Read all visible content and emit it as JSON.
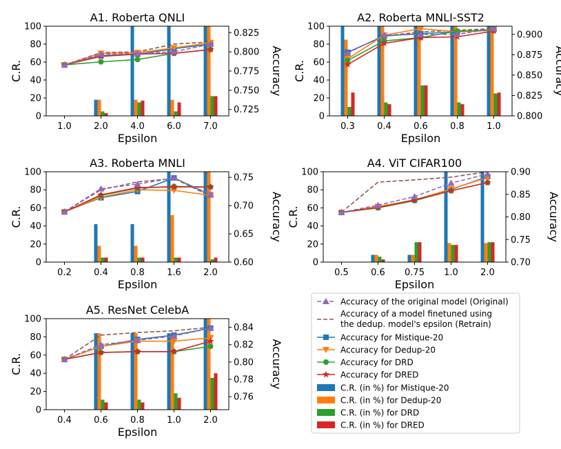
{
  "colors": {
    "mistique": "#1f77b4",
    "dedup": "#ff7f0e",
    "drd": "#2ca02c",
    "dred": "#d62728",
    "original": "#9467bd",
    "retrain": "#8c564b"
  },
  "legend": {
    "placement": "bottom-right",
    "entries": [
      {
        "key": "original",
        "kind": "line-dashed-triangle",
        "label": "Accuracy of the original model (Original)"
      },
      {
        "key": "retrain",
        "kind": "line-dashed",
        "label": "Accuracy of a model finetuned using",
        "label2": "the dedup. model's epsilon (Retrain)"
      },
      {
        "key": "mistique",
        "kind": "line-square",
        "label": "Accuracy for Mistique-20"
      },
      {
        "key": "dedup",
        "kind": "line-tri-down",
        "label": "Accuracy for Dedup-20"
      },
      {
        "key": "drd",
        "kind": "line-circle",
        "label": "Accuracy for DRD"
      },
      {
        "key": "dred",
        "kind": "line-star",
        "label": "Accuracy for DRED"
      },
      {
        "key": "mistique",
        "kind": "bar",
        "label": "C.R. (in %) for Mistique-20"
      },
      {
        "key": "dedup",
        "kind": "bar",
        "label": "C.R. (in %) for Dedup-20"
      },
      {
        "key": "drd",
        "kind": "bar",
        "label": "C.R. (in %) for DRD"
      },
      {
        "key": "dred",
        "kind": "bar",
        "label": "C.R. (in %) for DRED"
      }
    ]
  },
  "chart_data": [
    {
      "type": "bar+line",
      "title": "A1. Roberta QNLI",
      "xlabel": "Epsilon",
      "ylabel": "C.R.",
      "y2label": "Accuracy",
      "categories": [
        "1.0",
        "2.0",
        "4.0",
        "6.0",
        "7.0"
      ],
      "ylim": [
        0,
        100
      ],
      "yticks": [
        "0",
        "20",
        "40",
        "60",
        "80",
        "100"
      ],
      "y2lim": [
        0.7167,
        0.8333
      ],
      "y2ticks": [
        "0.725",
        "0.750",
        "0.775",
        "0.800",
        "0.825"
      ],
      "grid": false,
      "bars": {
        "mistique": [
          0,
          18,
          100,
          100,
          100
        ],
        "dedup": [
          0,
          18,
          18,
          18,
          100
        ],
        "drd": [
          0,
          5,
          15,
          5,
          22
        ],
        "dred": [
          0,
          3,
          17,
          15,
          22
        ]
      },
      "lines": {
        "original": [
          0.783,
          0.797,
          0.798,
          0.8,
          0.81
        ],
        "retrain": [
          0.783,
          0.799,
          0.8,
          0.81,
          0.813
        ],
        "mistique": [
          0.783,
          0.795,
          0.797,
          0.804,
          0.81
        ],
        "dedup": [
          0.783,
          0.798,
          0.799,
          0.805,
          0.812
        ],
        "drd": [
          0.783,
          0.787,
          0.79,
          0.798,
          0.803
        ],
        "dred": [
          0.783,
          0.794,
          0.797,
          0.798,
          0.803
        ]
      }
    },
    {
      "type": "bar+line",
      "title": "A2. Roberta MNLI-SST2",
      "xlabel": "Epsilon",
      "ylabel": "C.R.",
      "y2label": "Accuracy",
      "categories": [
        "0.3",
        "0.4",
        "0.6",
        "0.8",
        "1.0"
      ],
      "ylim": [
        0,
        100
      ],
      "yticks": [
        "0",
        "20",
        "40",
        "60",
        "80",
        "100"
      ],
      "y2lim": [
        0.8,
        0.91
      ],
      "y2ticks": [
        "0.800",
        "0.825",
        "0.850",
        "0.875",
        "0.900"
      ],
      "grid": false,
      "bars": {
        "mistique": [
          100,
          100,
          100,
          100,
          100
        ],
        "dedup": [
          85,
          100,
          100,
          100,
          100
        ],
        "drd": [
          10,
          15,
          34,
          15,
          25
        ],
        "dred": [
          26,
          13,
          34,
          13,
          26
        ]
      },
      "lines": {
        "original": [
          0.877,
          0.899,
          0.9,
          0.9,
          0.907
        ],
        "retrain": [
          0.878,
          0.898,
          0.903,
          0.905,
          0.907
        ],
        "mistique": [
          0.878,
          0.898,
          0.901,
          0.903,
          0.906
        ],
        "dedup": [
          0.87,
          0.899,
          0.907,
          0.903,
          0.905
        ],
        "drd": [
          0.868,
          0.892,
          0.896,
          0.904,
          0.905
        ],
        "dred": [
          0.863,
          0.889,
          0.896,
          0.897,
          0.904
        ]
      }
    },
    {
      "type": "bar+line",
      "title": "A3. Roberta MNLI",
      "xlabel": "Epsilon",
      "ylabel": "C.R.",
      "y2label": "Accuracy",
      "categories": [
        "0.2",
        "0.4",
        "0.8",
        "1.6",
        "2.0"
      ],
      "ylim": [
        0,
        100
      ],
      "yticks": [
        "0",
        "20",
        "40",
        "60",
        "80",
        "100"
      ],
      "y2lim": [
        0.6,
        0.76
      ],
      "y2ticks": [
        "0.60",
        "0.65",
        "0.70",
        "0.75"
      ],
      "grid": false,
      "bars": {
        "mistique": [
          0,
          42,
          42,
          100,
          100
        ],
        "dedup": [
          0,
          18,
          18,
          52,
          100
        ],
        "drd": [
          0,
          5,
          5,
          5,
          3
        ],
        "dred": [
          0,
          5,
          5,
          5,
          5
        ]
      },
      "lines": {
        "original": [
          0.689,
          0.73,
          0.738,
          0.749,
          0.72
        ],
        "retrain": [
          0.689,
          0.728,
          0.742,
          0.748,
          0.717
        ],
        "mistique": [
          0.689,
          0.714,
          0.725,
          0.749,
          0.719
        ],
        "dedup": [
          0.689,
          0.715,
          0.728,
          0.727,
          0.718
        ],
        "drd": [
          0.689,
          0.718,
          0.731,
          0.734,
          0.733
        ],
        "dred": [
          0.689,
          0.719,
          0.732,
          0.733,
          0.733
        ]
      }
    },
    {
      "type": "bar+line",
      "title": "A4. ViT CIFAR100",
      "xlabel": "Epsilon",
      "ylabel": "C.R.",
      "y2label": "Accuracy",
      "categories": [
        "0.5",
        "0.6",
        "0.75",
        "1.0",
        "2.0"
      ],
      "ylim": [
        0,
        100
      ],
      "yticks": [
        "0",
        "20",
        "40",
        "60",
        "80",
        "100"
      ],
      "y2lim": [
        0.7,
        0.9
      ],
      "y2ticks": [
        "0.70",
        "0.75",
        "0.80",
        "0.85",
        "0.90"
      ],
      "grid": false,
      "bars": {
        "mistique": [
          0,
          8,
          8,
          100,
          100
        ],
        "dedup": [
          0,
          8,
          8,
          21,
          21
        ],
        "drd": [
          0,
          6,
          22,
          19,
          22
        ],
        "dred": [
          0,
          3,
          22,
          19,
          22
        ]
      },
      "lines": {
        "original": [
          0.81,
          0.826,
          0.845,
          0.875,
          0.895
        ],
        "retrain": [
          0.81,
          0.877,
          0.882,
          0.888,
          0.9
        ],
        "mistique": [
          0.81,
          0.822,
          0.838,
          0.861,
          0.889
        ],
        "dedup": [
          0.81,
          0.823,
          0.837,
          0.862,
          0.887
        ],
        "drd": [
          0.81,
          0.82,
          0.836,
          0.858,
          0.876
        ],
        "dred": [
          0.81,
          0.821,
          0.837,
          0.858,
          0.876
        ]
      }
    },
    {
      "type": "bar+line",
      "title": "A5. ResNet CelebA",
      "xlabel": "Epsilon",
      "ylabel": "C.R.",
      "y2label": "Accuracy",
      "categories": [
        "0.4",
        "0.6",
        "0.8",
        "1.0",
        "2.0"
      ],
      "ylim": [
        0,
        100
      ],
      "yticks": [
        "0",
        "20",
        "40",
        "60",
        "80",
        "100"
      ],
      "y2lim": [
        0.745,
        0.85
      ],
      "y2ticks": [
        "0.76",
        "0.78",
        "0.80",
        "0.82",
        "0.84"
      ],
      "grid": false,
      "bars": {
        "mistique": [
          0,
          84,
          84,
          84,
          100
        ],
        "dedup": [
          0,
          84,
          84,
          84,
          100
        ],
        "drd": [
          0,
          11,
          11,
          18,
          35
        ],
        "dred": [
          0,
          8,
          8,
          13,
          40
        ]
      },
      "lines": {
        "original": [
          0.803,
          0.82,
          0.825,
          0.83,
          0.839
        ],
        "retrain": [
          0.803,
          0.831,
          0.834,
          0.836,
          0.84
        ],
        "mistique": [
          0.803,
          0.818,
          0.826,
          0.831,
          0.839
        ],
        "dedup": [
          0.803,
          0.818,
          0.824,
          0.824,
          0.828
        ],
        "drd": [
          0.803,
          0.811,
          0.812,
          0.812,
          0.818
        ],
        "dred": [
          0.803,
          0.811,
          0.812,
          0.812,
          0.824
        ]
      }
    }
  ]
}
